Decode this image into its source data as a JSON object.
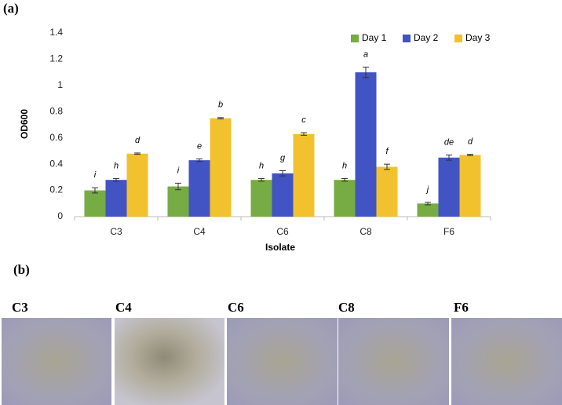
{
  "panel_a_label": "(a)",
  "chart_data": {
    "type": "bar",
    "x_label": "Isolate",
    "y_label": "OD600",
    "categories": [
      "C3",
      "C4",
      "C6",
      "C8",
      "F6"
    ],
    "series": [
      {
        "name": "Day 1",
        "color": "#77ab43",
        "values": [
          0.2,
          0.23,
          0.28,
          0.28,
          0.1
        ],
        "errors": [
          0.02,
          0.025,
          0.01,
          0.01,
          0.01
        ],
        "letters": [
          "i",
          "i",
          "h",
          "h",
          "j"
        ]
      },
      {
        "name": "Day 2",
        "color": "#4254c4",
        "values": [
          0.28,
          0.43,
          0.33,
          1.1,
          0.45
        ],
        "errors": [
          0.01,
          0.01,
          0.02,
          0.04,
          0.02
        ],
        "letters": [
          "h",
          "e",
          "g",
          "a",
          "de"
        ]
      },
      {
        "name": "Day 3",
        "color": "#f2c12e",
        "values": [
          0.48,
          0.75,
          0.63,
          0.38,
          0.47
        ],
        "errors": [
          0.005,
          0.005,
          0.01,
          0.02,
          0.005
        ],
        "letters": [
          "d",
          "b",
          "c",
          "f",
          "d"
        ]
      }
    ],
    "ylim": [
      0,
      1.4
    ],
    "yticks": [
      0,
      0.2,
      0.4,
      0.6,
      0.8,
      1,
      1.2,
      1.4
    ],
    "grid": false,
    "legend": "top-right"
  },
  "panel_b": {
    "label": "(b)",
    "images": [
      "C3",
      "C4",
      "C6",
      "C8",
      "F6"
    ]
  }
}
